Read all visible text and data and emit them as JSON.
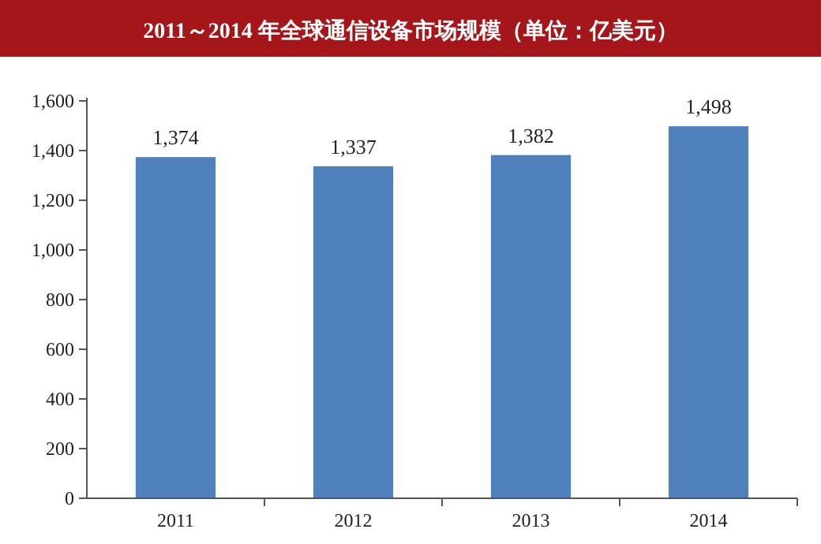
{
  "chart_data": {
    "type": "bar",
    "title": "2011～2014 年全球通信设备市场规模（单位：亿美元）",
    "categories": [
      "2011",
      "2012",
      "2013",
      "2014"
    ],
    "values": [
      1374,
      1337,
      1382,
      1498
    ],
    "value_labels": [
      "1,374",
      "1,337",
      "1,382",
      "1,498"
    ],
    "color": "#4f81bd",
    "ylim": [
      0,
      1600
    ],
    "yticks": [
      {
        "value": 0,
        "label": "0"
      },
      {
        "value": 200,
        "label": "200"
      },
      {
        "value": 400,
        "label": "400"
      },
      {
        "value": 600,
        "label": "600"
      },
      {
        "value": 800,
        "label": "800"
      },
      {
        "value": 1000,
        "label": "1,000"
      },
      {
        "value": 1200,
        "label": "1,200"
      },
      {
        "value": 1400,
        "label": "1,400"
      },
      {
        "value": 1600,
        "label": "1,600"
      }
    ],
    "grid": false
  }
}
